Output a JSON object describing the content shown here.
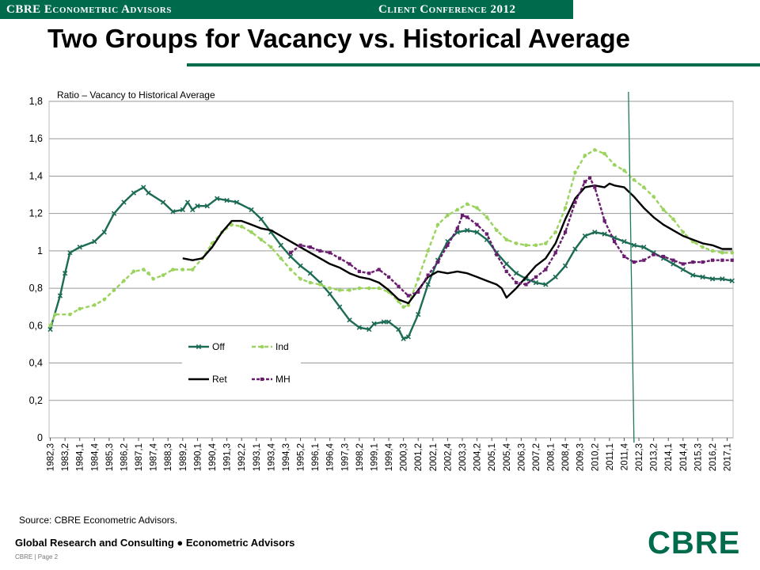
{
  "header": {
    "left": "CBRE Econometric Advisors",
    "right": "Client Conference 2012"
  },
  "title": "Two Groups for Vacancy vs. Historical Average",
  "source": "Source: CBRE Econometric Advisors.",
  "footer": {
    "text": "Global Research and Consulting ● Econometric Advisors",
    "page": "CBRE | Page 2"
  },
  "logo": "CBRE",
  "colors": {
    "brand": "#006a4d",
    "off": "#1c6b55",
    "ind": "#9ad35d",
    "ret": "#000000",
    "mh": "#6a1d6f",
    "grid": "#9a9a9a"
  },
  "chart_data": {
    "type": "line",
    "ylabel": "Ratio – Vacancy to Historical Average",
    "ylim": [
      0,
      1.8
    ],
    "yticks": [
      "0",
      "0,2",
      "0,4",
      "0,6",
      "0,8",
      "1",
      "1,2",
      "1,4",
      "1,6",
      "1,8"
    ],
    "xticks": [
      "1982,3",
      "1983,2",
      "1984,1",
      "1984,4",
      "1985,3",
      "1986,2",
      "1987,1",
      "1987,4",
      "1988,3",
      "1989,2",
      "1990,1",
      "1990,4",
      "1991,3",
      "1992,2",
      "1993,1",
      "1993,4",
      "1994,3",
      "1995,2",
      "1996,1",
      "1996,4",
      "1997,3",
      "1998,2",
      "1999,1",
      "1999,4",
      "2000,3",
      "2001,2",
      "2002,1",
      "2002,4",
      "2003,3",
      "2004,2",
      "2005,1",
      "2005,4",
      "2006,3",
      "2007,2",
      "2008,1",
      "2008,4",
      "2009,3",
      "2010,2",
      "2011,1",
      "2011,4",
      "2012,3",
      "2013,2",
      "2014,1",
      "2014,4",
      "2015,3",
      "2016,2",
      "2017,1"
    ],
    "vline_x": "2012,2",
    "legend": "center-left",
    "series": [
      {
        "name": "Off",
        "values": [
          [
            1982.5,
            0.58
          ],
          [
            1983.0,
            0.76
          ],
          [
            1983.25,
            0.88
          ],
          [
            1983.5,
            0.99
          ],
          [
            1984.0,
            1.02
          ],
          [
            1984.75,
            1.05
          ],
          [
            1985.25,
            1.1
          ],
          [
            1985.75,
            1.2
          ],
          [
            1986.25,
            1.26
          ],
          [
            1986.75,
            1.31
          ],
          [
            1987.25,
            1.34
          ],
          [
            1987.5,
            1.31
          ],
          [
            1988.25,
            1.26
          ],
          [
            1988.75,
            1.21
          ],
          [
            1989.25,
            1.22
          ],
          [
            1989.5,
            1.26
          ],
          [
            1989.75,
            1.22
          ],
          [
            1990.0,
            1.24
          ],
          [
            1990.5,
            1.24
          ],
          [
            1991.0,
            1.28
          ],
          [
            1991.5,
            1.27
          ],
          [
            1992.0,
            1.26
          ],
          [
            1992.75,
            1.22
          ],
          [
            1993.25,
            1.17
          ],
          [
            1993.75,
            1.1
          ],
          [
            1994.25,
            1.03
          ],
          [
            1994.75,
            0.97
          ],
          [
            1995.25,
            0.92
          ],
          [
            1995.75,
            0.88
          ],
          [
            1996.25,
            0.83
          ],
          [
            1996.75,
            0.77
          ],
          [
            1997.25,
            0.7
          ],
          [
            1997.75,
            0.63
          ],
          [
            1998.25,
            0.59
          ],
          [
            1998.75,
            0.58
          ],
          [
            1999.0,
            0.61
          ],
          [
            1999.5,
            0.62
          ],
          [
            1999.75,
            0.62
          ],
          [
            2000.25,
            0.58
          ],
          [
            2000.5,
            0.53
          ],
          [
            2000.75,
            0.54
          ],
          [
            2001.25,
            0.66
          ],
          [
            2001.75,
            0.82
          ],
          [
            2002.25,
            0.95
          ],
          [
            2002.75,
            1.05
          ],
          [
            2003.25,
            1.1
          ],
          [
            2003.75,
            1.11
          ],
          [
            2004.25,
            1.1
          ],
          [
            2004.75,
            1.06
          ],
          [
            2005.25,
            0.99
          ],
          [
            2005.75,
            0.93
          ],
          [
            2006.25,
            0.88
          ],
          [
            2006.75,
            0.85
          ],
          [
            2007.25,
            0.83
          ],
          [
            2007.75,
            0.82
          ],
          [
            2008.25,
            0.86
          ],
          [
            2008.75,
            0.92
          ],
          [
            2009.25,
            1.01
          ],
          [
            2009.75,
            1.08
          ],
          [
            2010.25,
            1.1
          ],
          [
            2010.75,
            1.09
          ],
          [
            2011.25,
            1.07
          ],
          [
            2011.75,
            1.05
          ],
          [
            2012.25,
            1.03
          ],
          [
            2012.75,
            1.02
          ],
          [
            2013.25,
            0.99
          ],
          [
            2013.75,
            0.96
          ],
          [
            2014.25,
            0.93
          ],
          [
            2014.75,
            0.9
          ],
          [
            2015.25,
            0.87
          ],
          [
            2015.75,
            0.86
          ],
          [
            2016.25,
            0.85
          ],
          [
            2016.75,
            0.85
          ],
          [
            2017.25,
            0.84
          ]
        ]
      },
      {
        "name": "Ind",
        "values": [
          [
            1982.5,
            0.6
          ],
          [
            1982.75,
            0.66
          ],
          [
            1983.5,
            0.66
          ],
          [
            1984.0,
            0.69
          ],
          [
            1984.75,
            0.71
          ],
          [
            1985.25,
            0.74
          ],
          [
            1985.75,
            0.79
          ],
          [
            1986.25,
            0.84
          ],
          [
            1986.75,
            0.89
          ],
          [
            1987.25,
            0.9
          ],
          [
            1987.5,
            0.88
          ],
          [
            1987.75,
            0.85
          ],
          [
            1988.25,
            0.87
          ],
          [
            1988.75,
            0.9
          ],
          [
            1989.25,
            0.9
          ],
          [
            1989.75,
            0.9
          ],
          [
            1990.25,
            0.96
          ],
          [
            1990.75,
            1.04
          ],
          [
            1991.25,
            1.1
          ],
          [
            1991.75,
            1.14
          ],
          [
            1992.25,
            1.13
          ],
          [
            1992.75,
            1.1
          ],
          [
            1993.25,
            1.06
          ],
          [
            1993.75,
            1.02
          ],
          [
            1994.25,
            0.96
          ],
          [
            1994.75,
            0.9
          ],
          [
            1995.25,
            0.85
          ],
          [
            1995.75,
            0.83
          ],
          [
            1996.25,
            0.82
          ],
          [
            1996.75,
            0.8
          ],
          [
            1997.25,
            0.79
          ],
          [
            1997.75,
            0.79
          ],
          [
            1998.25,
            0.8
          ],
          [
            1998.75,
            0.8
          ],
          [
            1999.25,
            0.8
          ],
          [
            1999.75,
            0.78
          ],
          [
            2000.25,
            0.73
          ],
          [
            2000.5,
            0.7
          ],
          [
            2000.75,
            0.71
          ],
          [
            2001.25,
            0.85
          ],
          [
            2001.75,
            1.0
          ],
          [
            2002.25,
            1.14
          ],
          [
            2002.75,
            1.19
          ],
          [
            2003.25,
            1.22
          ],
          [
            2003.75,
            1.25
          ],
          [
            2004.25,
            1.23
          ],
          [
            2004.75,
            1.18
          ],
          [
            2005.25,
            1.11
          ],
          [
            2005.75,
            1.06
          ],
          [
            2006.25,
            1.04
          ],
          [
            2006.75,
            1.03
          ],
          [
            2007.25,
            1.03
          ],
          [
            2007.75,
            1.04
          ],
          [
            2008.25,
            1.1
          ],
          [
            2008.75,
            1.23
          ],
          [
            2009.25,
            1.42
          ],
          [
            2009.75,
            1.51
          ],
          [
            2010.25,
            1.54
          ],
          [
            2010.75,
            1.52
          ],
          [
            2011.25,
            1.46
          ],
          [
            2011.75,
            1.43
          ],
          [
            2012.25,
            1.38
          ],
          [
            2012.75,
            1.34
          ],
          [
            2013.25,
            1.29
          ],
          [
            2013.75,
            1.22
          ],
          [
            2014.25,
            1.17
          ],
          [
            2014.75,
            1.1
          ],
          [
            2015.25,
            1.05
          ],
          [
            2015.75,
            1.02
          ],
          [
            2016.25,
            1.0
          ],
          [
            2016.75,
            0.99
          ],
          [
            2017.25,
            0.99
          ]
        ]
      },
      {
        "name": "Ret",
        "values": [
          [
            1989.25,
            0.96
          ],
          [
            1989.75,
            0.95
          ],
          [
            1990.25,
            0.96
          ],
          [
            1990.75,
            1.02
          ],
          [
            1991.25,
            1.1
          ],
          [
            1991.75,
            1.16
          ],
          [
            1992.25,
            1.16
          ],
          [
            1992.75,
            1.14
          ],
          [
            1993.25,
            1.12
          ],
          [
            1993.75,
            1.11
          ],
          [
            1994.25,
            1.08
          ],
          [
            1994.75,
            1.05
          ],
          [
            1995.25,
            1.02
          ],
          [
            1995.75,
            0.99
          ],
          [
            1996.25,
            0.96
          ],
          [
            1996.75,
            0.93
          ],
          [
            1997.25,
            0.91
          ],
          [
            1997.75,
            0.88
          ],
          [
            1998.25,
            0.86
          ],
          [
            1998.75,
            0.85
          ],
          [
            1999.25,
            0.83
          ],
          [
            1999.75,
            0.79
          ],
          [
            2000.25,
            0.74
          ],
          [
            2000.75,
            0.72
          ],
          [
            2001.25,
            0.79
          ],
          [
            2001.75,
            0.86
          ],
          [
            2002.25,
            0.89
          ],
          [
            2002.75,
            0.88
          ],
          [
            2003.25,
            0.89
          ],
          [
            2003.75,
            0.88
          ],
          [
            2004.25,
            0.86
          ],
          [
            2004.75,
            0.84
          ],
          [
            2005.25,
            0.82
          ],
          [
            2005.5,
            0.8
          ],
          [
            2005.75,
            0.75
          ],
          [
            2006.25,
            0.8
          ],
          [
            2006.75,
            0.86
          ],
          [
            2007.25,
            0.92
          ],
          [
            2007.75,
            0.96
          ],
          [
            2008.25,
            1.04
          ],
          [
            2008.75,
            1.17
          ],
          [
            2009.25,
            1.28
          ],
          [
            2009.75,
            1.34
          ],
          [
            2010.25,
            1.35
          ],
          [
            2010.75,
            1.34
          ],
          [
            2011.0,
            1.36
          ],
          [
            2011.25,
            1.35
          ],
          [
            2011.75,
            1.34
          ],
          [
            2012.25,
            1.29
          ],
          [
            2012.75,
            1.23
          ],
          [
            2013.25,
            1.18
          ],
          [
            2013.75,
            1.14
          ],
          [
            2014.25,
            1.11
          ],
          [
            2014.75,
            1.08
          ],
          [
            2015.25,
            1.06
          ],
          [
            2015.75,
            1.04
          ],
          [
            2016.25,
            1.03
          ],
          [
            2016.75,
            1.01
          ],
          [
            2017.25,
            1.01
          ]
        ]
      },
      {
        "name": "MH",
        "values": [
          [
            1994.75,
            0.99
          ],
          [
            1995.25,
            1.03
          ],
          [
            1995.75,
            1.02
          ],
          [
            1996.25,
            1.0
          ],
          [
            1996.75,
            0.99
          ],
          [
            1997.25,
            0.96
          ],
          [
            1997.75,
            0.93
          ],
          [
            1998.25,
            0.89
          ],
          [
            1998.75,
            0.88
          ],
          [
            1999.25,
            0.9
          ],
          [
            1999.75,
            0.86
          ],
          [
            2000.25,
            0.81
          ],
          [
            2000.75,
            0.76
          ],
          [
            2001.25,
            0.78
          ],
          [
            2001.75,
            0.87
          ],
          [
            2002.25,
            0.94
          ],
          [
            2002.75,
            1.03
          ],
          [
            2003.25,
            1.12
          ],
          [
            2003.5,
            1.19
          ],
          [
            2003.75,
            1.18
          ],
          [
            2004.25,
            1.14
          ],
          [
            2004.75,
            1.09
          ],
          [
            2005.25,
            0.98
          ],
          [
            2005.75,
            0.89
          ],
          [
            2006.25,
            0.83
          ],
          [
            2006.75,
            0.82
          ],
          [
            2007.25,
            0.86
          ],
          [
            2007.75,
            0.9
          ],
          [
            2008.25,
            0.99
          ],
          [
            2008.75,
            1.1
          ],
          [
            2009.25,
            1.26
          ],
          [
            2009.75,
            1.37
          ],
          [
            2010.0,
            1.39
          ],
          [
            2010.25,
            1.34
          ],
          [
            2010.75,
            1.16
          ],
          [
            2011.25,
            1.05
          ],
          [
            2011.75,
            0.97
          ],
          [
            2012.25,
            0.94
          ],
          [
            2012.75,
            0.95
          ],
          [
            2013.25,
            0.98
          ],
          [
            2013.75,
            0.97
          ],
          [
            2014.25,
            0.95
          ],
          [
            2014.75,
            0.93
          ],
          [
            2015.25,
            0.94
          ],
          [
            2015.75,
            0.94
          ],
          [
            2016.25,
            0.95
          ],
          [
            2016.75,
            0.95
          ],
          [
            2017.25,
            0.95
          ]
        ]
      }
    ]
  }
}
